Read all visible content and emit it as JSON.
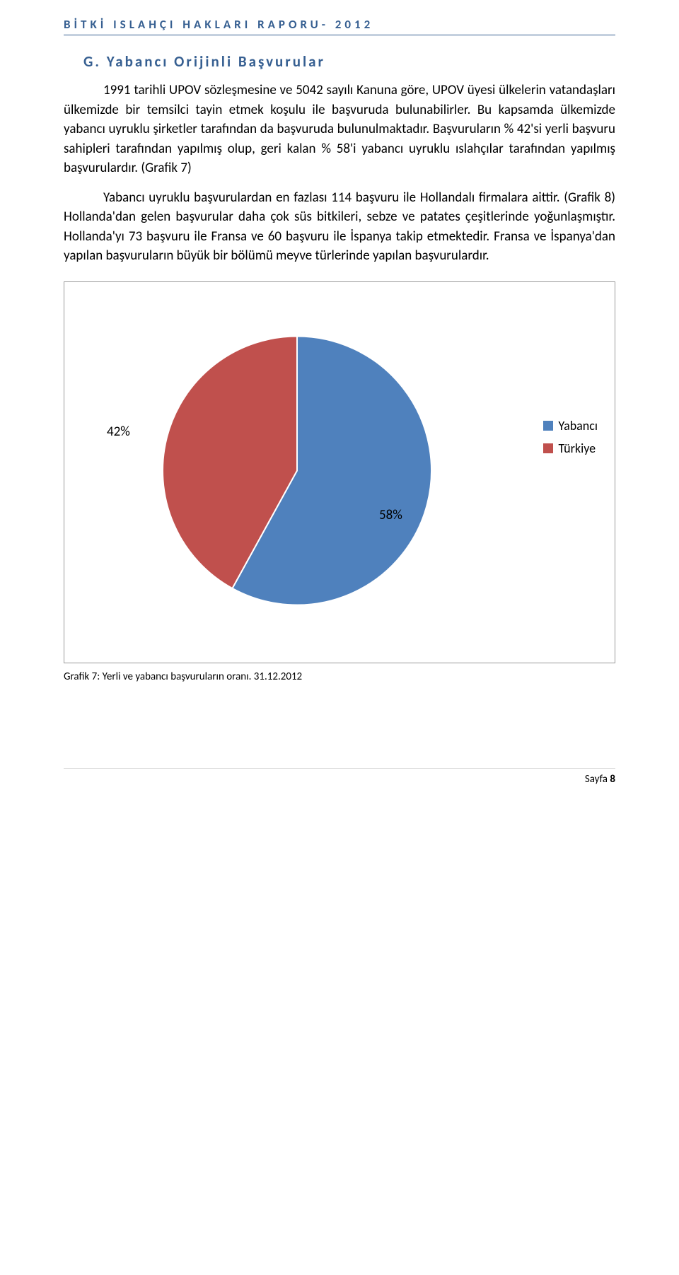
{
  "header": {
    "text": "BİTKİ ISLAHÇI HAKLARI RAPORU- 2012",
    "color": "#365f91"
  },
  "section": {
    "title": "G. Yabancı Orijinli Başvurular"
  },
  "paragraphs": {
    "p1": "1991 tarihli UPOV sözleşmesine ve 5042 sayılı Kanuna göre, UPOV üyesi ülkelerin vatandaşları ülkemizde bir temsilci tayin etmek koşulu ile başvuruda bulunabilirler. Bu kapsamda ülkemizde yabancı uyruklu şirketler tarafından da başvuruda bulunulmaktadır. Başvuruların % 42'si yerli başvuru sahipleri tarafından yapılmış olup, geri kalan % 58'i yabancı uyruklu ıslahçılar tarafından yapılmış başvurulardır. (Grafik 7)",
    "p2": "Yabancı uyruklu başvurulardan en fazlası 114 başvuru ile Hollandalı firmalara aittir. (Grafik 8) Hollanda'dan gelen başvurular daha çok süs bitkileri, sebze ve patates çeşitlerinde yoğunlaşmıştır. Hollanda'yı 73 başvuru ile Fransa ve 60 başvuru ile İspanya takip etmektedir. Fransa ve İspanya'dan yapılan başvuruların büyük bir bölümü meyve türlerinde yapılan başvurulardır."
  },
  "chart": {
    "type": "pie",
    "slices": [
      {
        "label": "Yabancı",
        "value": 58,
        "color": "#4f81bd"
      },
      {
        "label": "Türkiye",
        "value": 42,
        "color": "#c0504d"
      }
    ],
    "label_42": "42%",
    "label_58": "58%",
    "radius": 190,
    "border_color": "#999999",
    "background_color": "#ffffff",
    "stroke_color": "#ffffff",
    "label_fontsize": 19,
    "legend_fontsize": 18,
    "legend": {
      "items": [
        {
          "swatch": "#4f81bd",
          "text": "Yabancı"
        },
        {
          "swatch": "#c0504d",
          "text": "Türkiye"
        }
      ]
    }
  },
  "caption": "Grafik 7: Yerli ve yabancı başvuruların oranı. 31.12.2012",
  "footer": {
    "prefix": "Sayfa ",
    "page": "8"
  }
}
